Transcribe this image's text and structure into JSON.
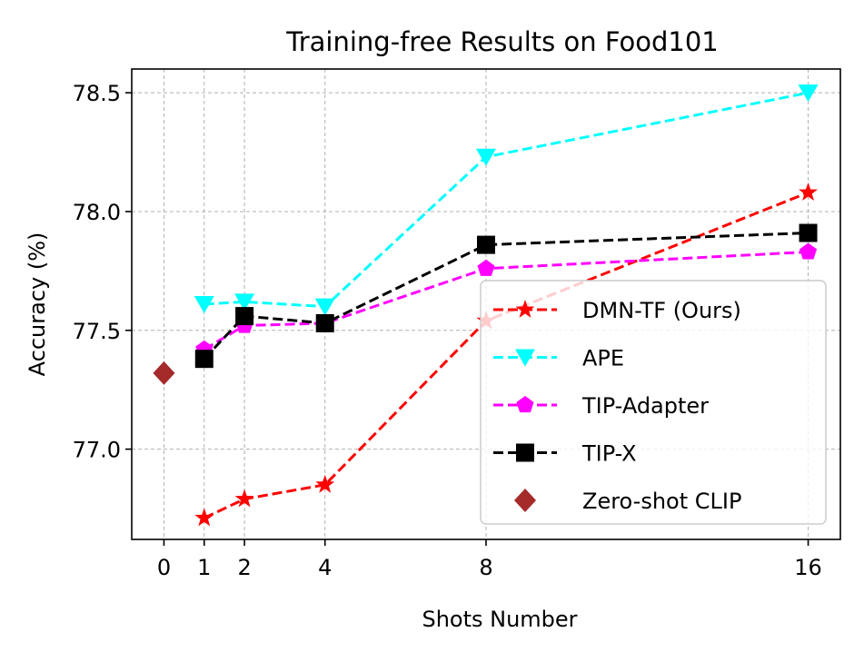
{
  "chart_data": {
    "type": "line",
    "title": "Training-free Results on Food101",
    "xlabel": "Shots Number",
    "ylabel": "Accuracy (%)",
    "xlim": [
      -0.8,
      16.8
    ],
    "ylim": [
      76.62,
      78.6
    ],
    "x_ticks": [
      0,
      1,
      2,
      4,
      8,
      16
    ],
    "x_tick_labels": [
      "0",
      "1",
      "2",
      "4",
      "8",
      "16"
    ],
    "y_ticks": [
      77.0,
      77.5,
      78.0,
      78.5
    ],
    "y_tick_labels": [
      "77.0",
      "77.5",
      "78.0",
      "78.5"
    ],
    "grid": true,
    "legend_position": "lower-right",
    "series": [
      {
        "name": "DMN-TF (Ours)",
        "color": "#ff0000",
        "marker": "star",
        "linestyle": "dashed",
        "x": [
          1,
          2,
          4,
          8,
          16
        ],
        "y": [
          76.71,
          76.79,
          76.85,
          77.54,
          78.08
        ]
      },
      {
        "name": "APE",
        "color": "#00ffff",
        "marker": "triangle-down",
        "linestyle": "dashed",
        "x": [
          1,
          2,
          4,
          8,
          16
        ],
        "y": [
          77.61,
          77.62,
          77.6,
          78.23,
          78.5
        ]
      },
      {
        "name": "TIP-Adapter",
        "color": "#ff00ff",
        "marker": "pentagon",
        "linestyle": "dashed",
        "x": [
          1,
          2,
          4,
          8,
          16
        ],
        "y": [
          77.42,
          77.52,
          77.53,
          77.76,
          77.83
        ]
      },
      {
        "name": "TIP-X",
        "color": "#000000",
        "marker": "square",
        "linestyle": "dashed",
        "x": [
          1,
          2,
          4,
          8,
          16
        ],
        "y": [
          77.38,
          77.56,
          77.53,
          77.86,
          77.91
        ]
      },
      {
        "name": "Zero-shot CLIP",
        "color": "#a52a2a",
        "marker": "diamond",
        "linestyle": "none",
        "x": [
          0
        ],
        "y": [
          77.32
        ]
      }
    ]
  }
}
